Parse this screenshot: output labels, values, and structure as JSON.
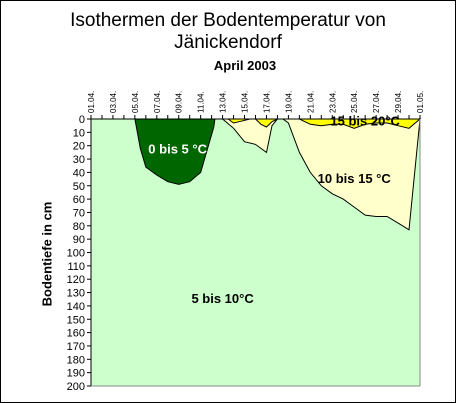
{
  "chart_data": {
    "type": "area",
    "title": "Isothermen der Bodentemperatur von Jänickendorf",
    "title_lines": [
      "Isothermen der Bodentemperatur von",
      "Jänickendorf"
    ],
    "subtitle": "April 2003",
    "xlabel": "",
    "ylabel": "Bodentiefe in cm",
    "x_tick_labels": [
      "01.04.",
      "03.04.",
      "05.04.",
      "07.04.",
      "09.04.",
      "11.04.",
      "13.04.",
      "15.04.",
      "17.04.",
      "19.04.",
      "21.04.",
      "23.04.",
      "25.04.",
      "27.04.",
      "29.04.",
      "01.05."
    ],
    "y_ticks": [
      0,
      10,
      20,
      30,
      40,
      50,
      60,
      70,
      80,
      90,
      100,
      110,
      120,
      130,
      140,
      150,
      160,
      170,
      180,
      190,
      200
    ],
    "ylim": [
      0,
      200
    ],
    "y_inverted": true,
    "x_day_range": [
      1,
      31
    ],
    "background_region": {
      "name": "5 bis 10°C",
      "color": "#ccffcc"
    },
    "regions": [
      {
        "name": "0 bis 5 °C",
        "color": "#006600",
        "label_color": "#ffffff",
        "points": [
          [
            5,
            0
          ],
          [
            5.5,
            22
          ],
          [
            6,
            36
          ],
          [
            7,
            42
          ],
          [
            8,
            47
          ],
          [
            9,
            49
          ],
          [
            10,
            47
          ],
          [
            11,
            40
          ],
          [
            12.2,
            6
          ],
          [
            12.3,
            0
          ]
        ]
      },
      {
        "name": "10 bis 15 °C",
        "color": "#ffffcc",
        "label_color": "#000000",
        "points": [
          [
            13,
            0
          ],
          [
            14,
            7
          ],
          [
            15,
            17
          ],
          [
            16,
            19
          ],
          [
            17,
            25
          ],
          [
            17.5,
            5
          ],
          [
            18,
            0
          ],
          [
            18.5,
            0
          ],
          [
            19,
            3
          ],
          [
            20,
            25
          ],
          [
            21,
            40
          ],
          [
            22,
            50
          ],
          [
            23,
            56
          ],
          [
            24,
            60
          ],
          [
            25,
            66
          ],
          [
            26,
            72
          ],
          [
            27,
            73
          ],
          [
            28,
            73
          ],
          [
            29,
            78
          ],
          [
            30,
            83
          ],
          [
            31,
            0
          ]
        ]
      },
      {
        "name": "15 bis 20 °C",
        "color": "#ffff00",
        "label_color": "#000000",
        "points": [
          [
            13.5,
            0
          ],
          [
            14,
            3
          ],
          [
            14.5,
            2
          ],
          [
            15.5,
            0
          ],
          [
            16,
            0
          ],
          [
            16.5,
            4
          ],
          [
            17,
            6
          ],
          [
            17.5,
            2
          ],
          [
            18,
            0
          ],
          [
            20,
            0
          ],
          [
            21,
            4
          ],
          [
            22,
            5
          ],
          [
            23,
            4
          ],
          [
            24,
            4
          ],
          [
            25,
            7
          ],
          [
            26,
            4
          ],
          [
            27,
            3
          ],
          [
            28,
            3
          ],
          [
            29,
            5
          ],
          [
            30,
            7
          ],
          [
            31,
            0
          ]
        ]
      }
    ],
    "labels": [
      {
        "text": "0 bis 5 °C",
        "x": 8.9,
        "depth": 23,
        "color": "#ffffff"
      },
      {
        "text": "10 bis 15 °C",
        "x": 25,
        "depth": 45,
        "color": "#000000"
      },
      {
        "text": "15 bis 20°C",
        "x": 26,
        "depth": 2,
        "color": "#000000"
      },
      {
        "text": "5 bis 10°C",
        "x": 13,
        "depth": 135,
        "color": "#000000"
      }
    ],
    "grid": false
  }
}
